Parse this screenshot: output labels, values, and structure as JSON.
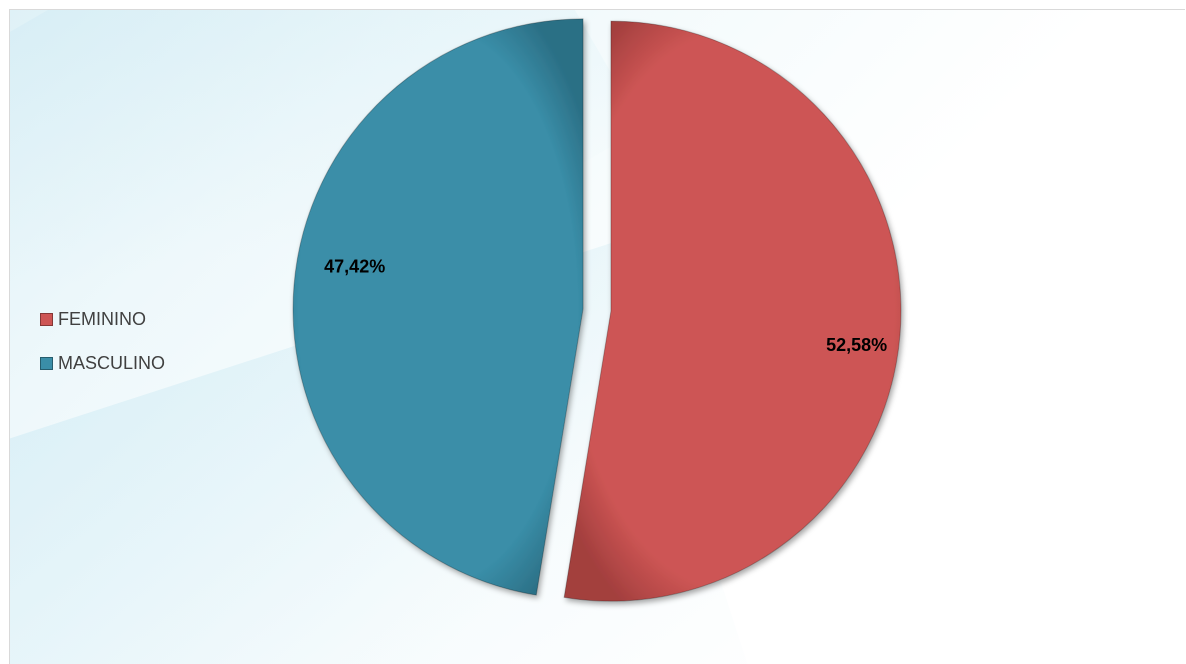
{
  "chart_data": {
    "type": "pie",
    "title": "",
    "categories": [
      "FEMININO",
      "MASCULINO"
    ],
    "values": [
      52.58,
      47.42
    ],
    "data_labels": [
      "52,58%",
      "47,42%"
    ],
    "colors": [
      "#cd5554",
      "#3a8ea8"
    ],
    "exploded": true,
    "legend_position": "left",
    "legend": [
      {
        "label": "FEMININO",
        "color": "#cd5554"
      },
      {
        "label": "MASCULINO",
        "color": "#3a8ea8"
      }
    ]
  }
}
